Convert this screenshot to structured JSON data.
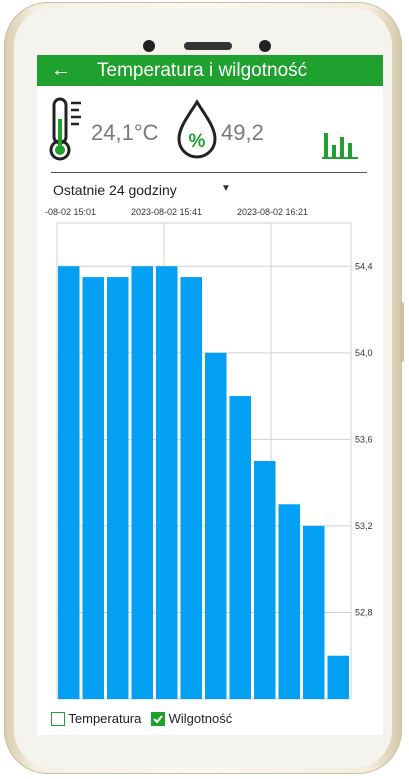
{
  "app": {
    "title": "Temperatura i wilgotność"
  },
  "sensors": {
    "temperature": "24,1°C",
    "humidity": "49,2"
  },
  "range_selector": {
    "selected": "Ostatnie 24 godziny"
  },
  "chart_data": {
    "type": "bar",
    "x_labels": [
      "-08-02 15:01",
      "2023-08-02 15:41",
      "2023-08-02 16:21"
    ],
    "values": [
      54.4,
      54.35,
      54.35,
      54.4,
      54.4,
      54.35,
      54.0,
      53.8,
      53.5,
      53.3,
      53.2,
      52.6
    ],
    "y_ticks": [
      "54,4",
      "54,0",
      "53,6",
      "53,2",
      "52,8"
    ],
    "y_tick_values": [
      54.4,
      54.0,
      53.6,
      53.2,
      52.8
    ],
    "ylim": [
      52.4,
      54.6
    ],
    "bar_color": "#03a0f4",
    "grid": true
  },
  "legend": [
    {
      "label": "Temperatura",
      "checked": false
    },
    {
      "label": "Wilgotność",
      "checked": true
    }
  ],
  "colors": {
    "accent": "#1fa12f",
    "bar": "#03a0f4"
  }
}
